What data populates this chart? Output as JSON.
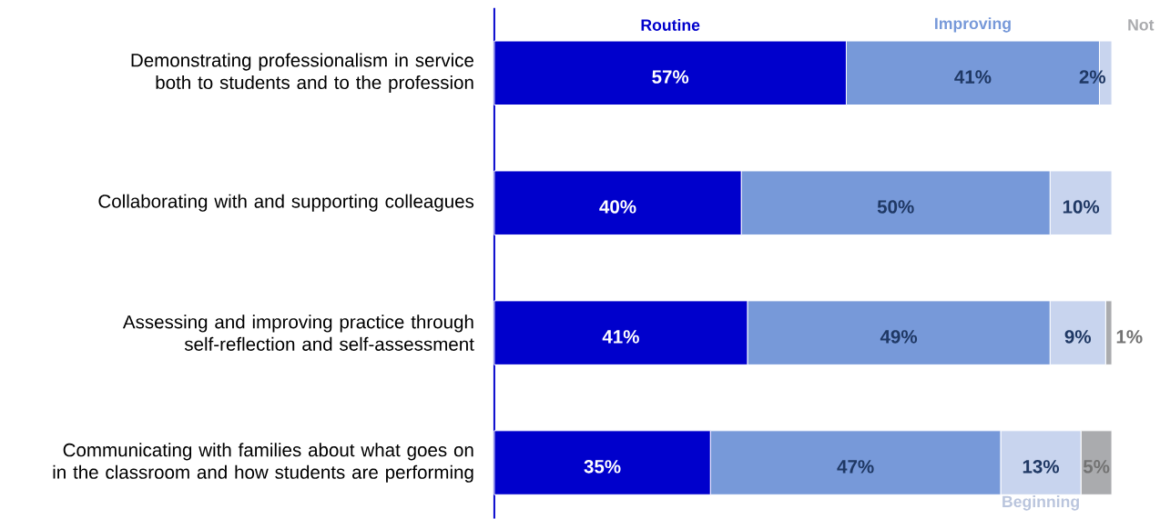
{
  "chart_data": {
    "type": "bar",
    "orientation": "horizontal",
    "stacked": true,
    "legend": false,
    "tick_labels": "y",
    "categories": [
      "Demonstrating professionalism in service both to students and to the profession",
      "Collaborating with and supporting colleagues",
      "Assessing and improving practice through self-reflection and self-assessment",
      "Communicating with families about what goes on in the classroom and how students are performing"
    ],
    "series": [
      {
        "name": "Routine",
        "color": "#0000cc",
        "values": [
          57,
          40,
          41,
          35
        ],
        "value_labels": [
          "57%",
          "40%",
          "41%",
          "35%"
        ]
      },
      {
        "name": "Improving",
        "color": "#7799d9",
        "values": [
          41,
          50,
          49,
          47
        ],
        "value_labels": [
          "41%",
          "50%",
          "49%",
          "47%"
        ]
      },
      {
        "name": "Beginning",
        "color": "#c8d4ee",
        "values": [
          2,
          10,
          9,
          13
        ],
        "value_labels": [
          "2%",
          "10%",
          "9%",
          "13%"
        ]
      },
      {
        "name": "Not",
        "color": "#aaabae",
        "values": [
          0,
          0,
          1,
          5
        ],
        "value_labels": [
          null,
          null,
          "1%",
          "5%"
        ]
      }
    ]
  }
}
